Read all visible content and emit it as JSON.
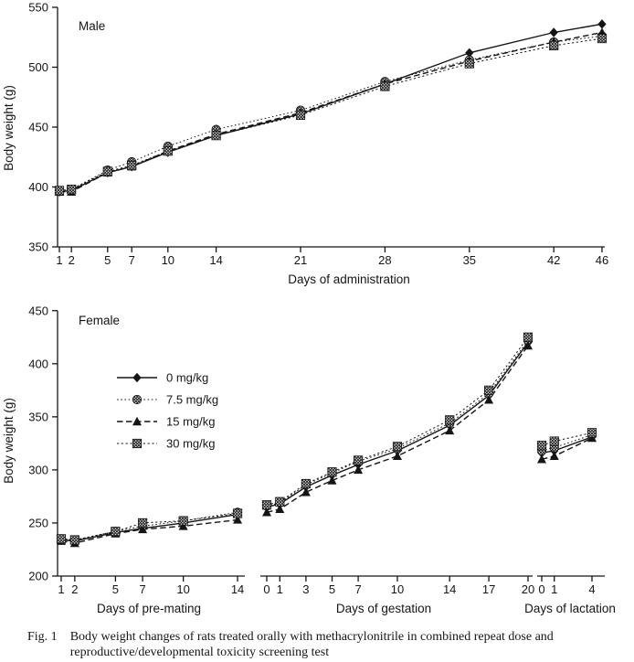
{
  "colors": {
    "ink": "#151515",
    "background": "#ffffff"
  },
  "caption": {
    "tag": "Fig. 1",
    "line1": "Body weight changes of rats treated orally with methacrylonitrile in combined repeat dose and",
    "line2": "reproductive/developmental toxicity screening test"
  },
  "chart_data": [
    {
      "id": "male",
      "type": "line",
      "title": "Male",
      "ylabel": "Body weight (g)",
      "ylim": [
        350,
        550
      ],
      "yticks": [
        350,
        400,
        450,
        500,
        550
      ],
      "grid": false,
      "show_legend": false,
      "segments": [
        {
          "xlabel": "Days of administration",
          "days": [
            1,
            2,
            5,
            7,
            10,
            14,
            21,
            28,
            35,
            42,
            46
          ]
        }
      ],
      "series": [
        {
          "name": "0 mg/kg",
          "marker": "filled-diamond",
          "line": "solid",
          "segments": [
            [
              396,
              397,
              412,
              417,
              429,
              443,
              461,
              486,
              512,
              529,
              536
            ]
          ]
        },
        {
          "name": "7.5 mg/kg",
          "marker": "hatched-circle",
          "line": "dotted",
          "segments": [
            [
              397,
              398,
              414,
              421,
              434,
              448,
              464,
              488,
              506,
              521,
              526
            ]
          ]
        },
        {
          "name": "15 mg/kg",
          "marker": "filled-triangle",
          "line": "dashed",
          "segments": [
            [
              396,
              396,
              412,
              417,
              430,
              444,
              462,
              486,
              505,
              521,
              529
            ]
          ]
        },
        {
          "name": "30 mg/kg",
          "marker": "hatched-square",
          "line": "dense-dotted",
          "segments": [
            [
              397,
              398,
              413,
              418,
              430,
              443,
              460,
              484,
              503,
              518,
              524
            ]
          ]
        }
      ]
    },
    {
      "id": "female",
      "type": "line",
      "title": "Female",
      "ylabel": "Body weight (g)",
      "ylim": [
        200,
        450
      ],
      "yticks": [
        200,
        250,
        300,
        350,
        400,
        450
      ],
      "grid": false,
      "show_legend": true,
      "legend_position": "upper-left",
      "segments": [
        {
          "xlabel": "Days of pre-mating",
          "days": [
            1,
            2,
            5,
            7,
            10,
            14
          ]
        },
        {
          "xlabel": "Days of gestation",
          "days": [
            0,
            1,
            3,
            5,
            7,
            10,
            14,
            17,
            20
          ]
        },
        {
          "xlabel": "Days of lactation",
          "days": [
            0,
            1,
            4
          ]
        }
      ],
      "series": [
        {
          "name": "0 mg/kg",
          "marker": "filled-diamond",
          "line": "solid",
          "segments": [
            [
              234,
              233,
              241,
              245,
              250,
              258
            ],
            [
              265,
              268,
              284,
              295,
              305,
              318,
              342,
              370,
              420
            ],
            [
              316,
              318,
              331
            ]
          ]
        },
        {
          "name": "7.5 mg/kg",
          "marker": "hatched-circle",
          "line": "dotted",
          "segments": [
            [
              235,
              234,
              242,
              247,
              252,
              260
            ],
            [
              266,
              269,
              286,
              297,
              308,
              320,
              344,
              372,
              422
            ],
            [
              318,
              321,
              333
            ]
          ]
        },
        {
          "name": "15 mg/kg",
          "marker": "filled-triangle",
          "line": "dashed",
          "segments": [
            [
              233,
              231,
              240,
              244,
              247,
              253
            ],
            [
              260,
              263,
              279,
              290,
              300,
              313,
              337,
              366,
              417
            ],
            [
              310,
              313,
              330
            ]
          ]
        },
        {
          "name": "30 mg/kg",
          "marker": "hatched-square",
          "line": "dense-dotted",
          "segments": [
            [
              235,
              234,
              242,
              250,
              252,
              259
            ],
            [
              267,
              270,
              287,
              298,
              309,
              322,
              347,
              375,
              425
            ],
            [
              323,
              327,
              335
            ]
          ]
        }
      ]
    }
  ]
}
